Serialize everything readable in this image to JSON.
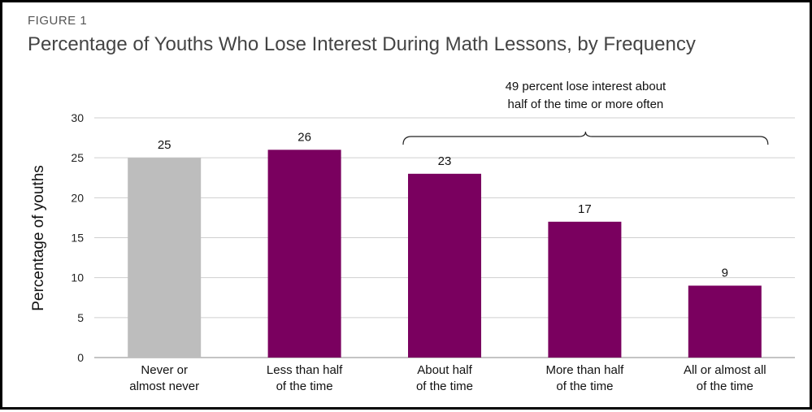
{
  "figure_label": "FIGURE 1",
  "chart_data": {
    "type": "bar",
    "title": "Percentage of Youths Who Lose Interest During Math Lessons, by Frequency",
    "xlabel": "",
    "ylabel": "Percentage of youths",
    "ylim": [
      0,
      30
    ],
    "yticks": [
      0,
      5,
      10,
      15,
      20,
      25,
      30
    ],
    "grid": true,
    "categories": [
      [
        "Never or",
        "almost never"
      ],
      [
        "Less than half",
        "of the time"
      ],
      [
        "About half",
        "of the time"
      ],
      [
        "More than half",
        "of the time"
      ],
      [
        "All or almost all",
        "of the time"
      ]
    ],
    "values": [
      25,
      26,
      23,
      17,
      9
    ],
    "colors": [
      "#bdbdbd",
      "#7a005f",
      "#7a005f",
      "#7a005f",
      "#7a005f"
    ],
    "annotation": {
      "lines": [
        "49 percent lose interest about",
        "half of the time or more often"
      ],
      "spans_categories": [
        2,
        4
      ]
    }
  }
}
